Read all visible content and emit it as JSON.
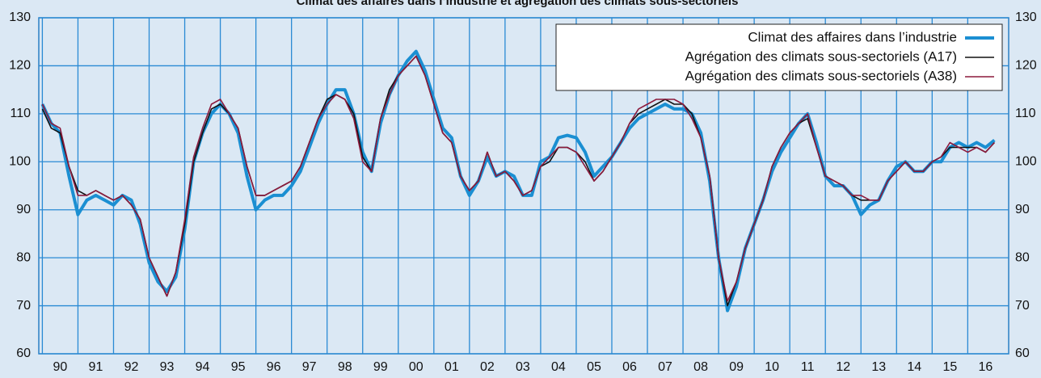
{
  "chart_data": {
    "type": "line",
    "title": "Climat des affaires dans l’industrie et agrégation des climats sous-sectoriels",
    "x": [
      1990,
      1990.25,
      1990.5,
      1990.75,
      1991,
      1991.25,
      1991.5,
      1991.75,
      1992,
      1992.25,
      1992.5,
      1992.75,
      1993,
      1993.25,
      1993.5,
      1993.75,
      1994,
      1994.25,
      1994.5,
      1994.75,
      1995,
      1995.25,
      1995.5,
      1995.75,
      1996,
      1996.25,
      1996.5,
      1996.75,
      1997,
      1997.25,
      1997.5,
      1997.75,
      1998,
      1998.25,
      1998.5,
      1998.75,
      1999,
      1999.25,
      1999.5,
      1999.75,
      2000,
      2000.25,
      2000.5,
      2000.75,
      2001,
      2001.25,
      2001.5,
      2001.75,
      2002,
      2002.25,
      2002.5,
      2002.75,
      2003,
      2003.25,
      2003.5,
      2003.75,
      2004,
      2004.25,
      2004.5,
      2004.75,
      2005,
      2005.25,
      2005.5,
      2005.75,
      2006,
      2006.25,
      2006.5,
      2006.75,
      2007,
      2007.25,
      2007.5,
      2007.75,
      2008,
      2008.25,
      2008.5,
      2008.75,
      2009,
      2009.25,
      2009.5,
      2009.75,
      2010,
      2010.25,
      2010.5,
      2010.75,
      2011,
      2011.25,
      2011.5,
      2011.75,
      2012,
      2012.25,
      2012.5,
      2012.75,
      2013,
      2013.25,
      2013.5,
      2013.75,
      2014,
      2014.25,
      2014.5,
      2014.75,
      2015,
      2015.25,
      2015.5,
      2015.75,
      2016,
      2016.25,
      2016.5,
      2016.75
    ],
    "series": [
      {
        "name": "Climat des affaires dans l’industrie",
        "color": "#1b8fd2",
        "width": 4,
        "values": [
          112,
          108,
          106,
          97,
          89,
          92,
          93,
          92,
          91,
          93,
          92,
          87,
          79,
          75,
          73,
          76,
          86,
          100,
          106,
          110,
          112,
          110,
          106,
          97,
          90,
          92,
          93,
          93,
          95,
          98,
          103,
          108,
          112,
          115,
          115,
          110,
          102,
          98,
          108,
          114,
          118,
          121,
          123,
          119,
          113,
          107,
          105,
          97,
          93,
          96,
          101,
          97,
          98,
          97,
          93,
          93,
          100,
          101,
          105,
          105.5,
          105,
          102,
          97,
          99,
          101,
          104,
          107,
          109,
          110,
          111,
          112,
          111,
          111,
          110,
          106,
          96,
          80,
          69,
          74,
          82,
          87,
          92,
          98,
          102,
          105,
          108,
          110,
          104,
          97,
          95,
          95,
          93,
          89,
          91,
          92,
          96,
          99,
          100,
          98,
          98,
          100,
          100,
          103,
          104,
          103,
          104,
          103,
          104.5
        ]
      },
      {
        "name": "Agrégation des climats sous-sectoriels (A17)",
        "color": "#111111",
        "width": 1.6,
        "values": [
          111,
          107,
          106,
          99,
          94,
          93,
          94,
          93,
          92,
          93,
          91,
          88,
          80,
          76,
          72,
          77,
          87,
          100,
          106,
          111,
          112,
          110,
          107,
          99,
          93,
          93,
          94,
          95,
          96,
          99,
          104,
          109,
          113,
          114,
          113,
          110,
          101,
          98,
          109,
          115,
          118,
          120,
          122,
          118,
          112,
          106,
          104,
          97,
          94,
          96,
          102,
          97,
          98,
          96,
          93,
          94,
          99,
          100,
          103,
          103,
          102,
          100,
          96,
          98,
          101,
          104,
          108,
          110,
          111,
          112,
          113,
          112,
          112,
          110,
          105,
          97,
          80,
          70,
          75,
          82,
          87,
          92,
          99,
          103,
          106,
          108,
          109,
          103,
          97,
          96,
          95,
          93,
          92,
          92,
          92,
          96,
          98,
          100,
          98,
          98,
          100,
          101,
          103,
          103,
          103,
          103,
          102,
          104
        ]
      },
      {
        "name": "Agrégation des climats sous-sectoriels (A38)",
        "color": "#8c1a3c",
        "width": 1.6,
        "values": [
          112,
          108,
          107,
          99,
          93,
          93,
          94,
          93,
          92,
          93,
          91,
          88,
          80,
          76,
          72,
          77,
          88,
          101,
          107,
          112,
          113,
          110,
          107,
          99,
          93,
          93,
          94,
          95,
          96,
          99,
          104,
          109,
          112,
          114,
          113,
          109,
          100,
          98,
          109,
          114,
          118,
          120,
          122,
          118,
          112,
          106,
          104,
          97,
          94,
          96,
          102,
          97,
          98,
          96,
          93,
          94,
          99,
          101,
          103,
          103,
          102,
          99,
          96,
          98,
          101,
          104,
          108,
          111,
          112,
          113,
          113,
          113,
          112,
          109,
          105,
          97,
          80,
          71,
          75,
          82,
          87,
          92,
          99,
          103,
          106,
          108,
          110,
          103,
          97,
          96,
          95,
          93,
          93,
          92,
          92,
          96,
          98,
          100,
          98,
          98,
          100,
          101,
          104,
          103,
          102,
          103,
          102,
          104
        ]
      }
    ],
    "xlim": [
      1989.9,
      2017.15
    ],
    "xticks": [
      {
        "value": 1990,
        "label": "90"
      },
      {
        "value": 1991,
        "label": "91"
      },
      {
        "value": 1992,
        "label": "92"
      },
      {
        "value": 1993,
        "label": "93"
      },
      {
        "value": 1994,
        "label": "94"
      },
      {
        "value": 1995,
        "label": "95"
      },
      {
        "value": 1996,
        "label": "96"
      },
      {
        "value": 1997,
        "label": "97"
      },
      {
        "value": 1998,
        "label": "98"
      },
      {
        "value": 1999,
        "label": "99"
      },
      {
        "value": 2000,
        "label": "00"
      },
      {
        "value": 2001,
        "label": "01"
      },
      {
        "value": 2002,
        "label": "02"
      },
      {
        "value": 2003,
        "label": "03"
      },
      {
        "value": 2004,
        "label": "04"
      },
      {
        "value": 2005,
        "label": "05"
      },
      {
        "value": 2006,
        "label": "06"
      },
      {
        "value": 2007,
        "label": "07"
      },
      {
        "value": 2008,
        "label": "08"
      },
      {
        "value": 2009,
        "label": "09"
      },
      {
        "value": 2010,
        "label": "10"
      },
      {
        "value": 2011,
        "label": "11"
      },
      {
        "value": 2012,
        "label": "12"
      },
      {
        "value": 2013,
        "label": "13"
      },
      {
        "value": 2014,
        "label": "14"
      },
      {
        "value": 2015,
        "label": "15"
      },
      {
        "value": 2016,
        "label": "16"
      }
    ],
    "ylim": [
      60,
      130
    ],
    "yticks": [
      60,
      70,
      80,
      90,
      100,
      110,
      120,
      130
    ],
    "y2lim": [
      60,
      130
    ],
    "y2ticks": [
      60,
      70,
      80,
      90,
      100,
      110,
      120,
      130
    ],
    "grid": true,
    "legend": "upper right"
  }
}
